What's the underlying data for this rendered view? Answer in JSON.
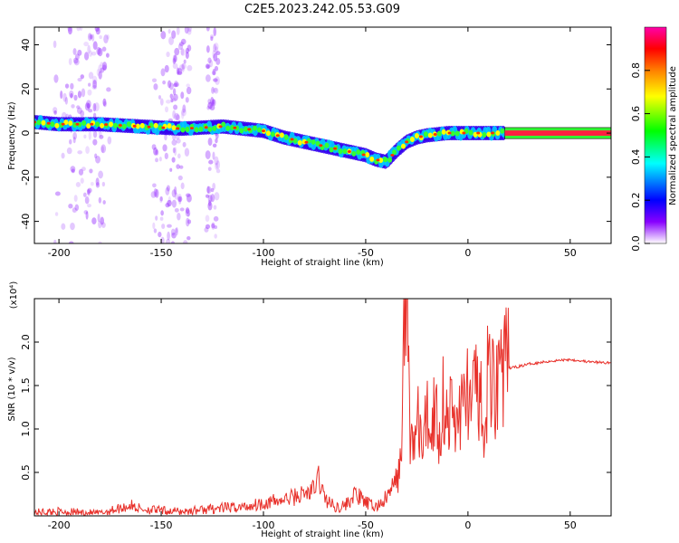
{
  "title": "C2E5.2023.242.05.53.G09",
  "chart_data": [
    {
      "type": "heatmap",
      "xlabel": "Height of straight line (km)",
      "ylabel": "Frequency (Hz)",
      "xlim": [
        -212,
        70
      ],
      "ylim": [
        -50,
        48
      ],
      "xticks": [
        -200,
        -150,
        -100,
        -50,
        0,
        50
      ],
      "yticks": [
        -40,
        -20,
        0,
        20,
        40
      ],
      "colorbar": {
        "label": "Normalized spectral amplitude",
        "range": [
          0,
          1
        ],
        "ticks": [
          "0.0",
          "0.2",
          "0.4",
          "0.6",
          "0.8"
        ],
        "colors": [
          "#ffffff",
          "#8800ff",
          "#0000ff",
          "#00ffff",
          "#00ff00",
          "#ffff00",
          "#ff8000",
          "#ff0000",
          "#ff00aa"
        ]
      },
      "ridge": {
        "x": [
          -212,
          -200,
          -180,
          -160,
          -140,
          -120,
          -100,
          -90,
          -80,
          -70,
          -60,
          -50,
          -45,
          -40,
          -35,
          -30,
          -25,
          -20,
          -10,
          0,
          10,
          18,
          70
        ],
        "y": [
          5,
          4,
          4,
          3,
          2,
          3,
          1,
          -2,
          -4,
          -6,
          -8,
          -10,
          -12,
          -13,
          -8,
          -4,
          -2,
          -1,
          0,
          0,
          0,
          0,
          0
        ]
      }
    },
    {
      "type": "line",
      "xlabel": "Height of straight line (km)",
      "ylabel": "SNR (10 * v/v)",
      "y_multiplier": "(x10⁴)",
      "xlim": [
        -212,
        70
      ],
      "ylim": [
        0,
        2.5
      ],
      "xticks": [
        -200,
        -150,
        -100,
        -50,
        0,
        50
      ],
      "yticks": [
        "0.5",
        "1.0",
        "1.5",
        "2.0"
      ],
      "color": "#e8302a",
      "series": [
        {
          "x": [
            -212,
            -200,
            -180,
            -165,
            -160,
            -150,
            -140,
            -130,
            -120,
            -110,
            -100,
            -90,
            -85,
            -80,
            -75,
            -73,
            -70,
            -65,
            -60,
            -55,
            -50,
            -45,
            -40,
            -35,
            -33,
            -31,
            -30,
            -28,
            -26,
            -24,
            -22,
            -20,
            -18,
            -16,
            -14,
            -12,
            -10,
            -8,
            -6,
            -4,
            -2,
            0,
            2,
            4,
            6,
            8,
            10,
            12,
            14,
            16,
            18,
            20,
            25,
            30,
            40,
            50,
            60,
            70
          ],
          "y": [
            0.04,
            0.05,
            0.03,
            0.12,
            0.08,
            0.06,
            0.05,
            0.07,
            0.09,
            0.1,
            0.15,
            0.18,
            0.22,
            0.25,
            0.3,
            0.45,
            0.2,
            0.1,
            0.12,
            0.25,
            0.15,
            0.1,
            0.2,
            0.4,
            0.6,
            2.1,
            2.5,
            0.8,
            0.9,
            1.1,
            0.7,
            1.2,
            1.0,
            1.3,
            0.9,
            1.4,
            1.1,
            1.2,
            1.0,
            1.3,
            1.2,
            1.55,
            1.1,
            1.6,
            1.4,
            0.55,
            1.85,
            1.5,
            1.6,
            1.8,
            1.65,
            1.7,
            1.72,
            1.75,
            1.78,
            1.8,
            1.77,
            1.76
          ]
        }
      ]
    }
  ]
}
